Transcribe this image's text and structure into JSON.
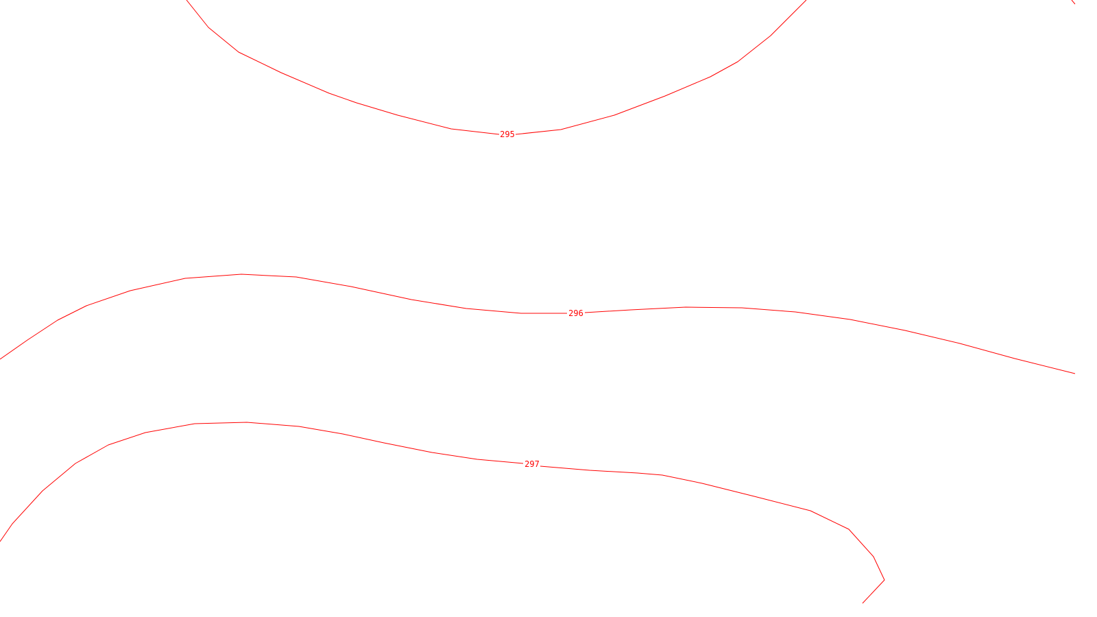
{
  "map": {
    "background_color": "#ffffff",
    "contour_color": "#ff0000",
    "contours": [
      {
        "id": "contour-295",
        "level": "295"
      },
      {
        "id": "contour-296",
        "level": "296"
      },
      {
        "id": "contour-297",
        "level": "297"
      }
    ]
  }
}
